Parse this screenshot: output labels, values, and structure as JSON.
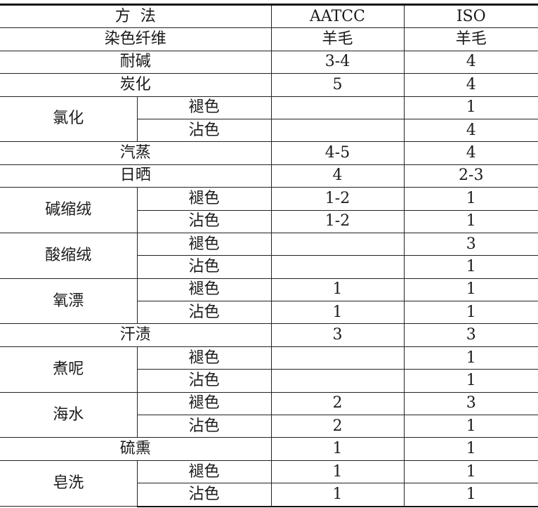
{
  "header": {
    "method": "方  法",
    "aatcc": "AATCC",
    "iso": "ISO"
  },
  "fiber": {
    "label": "染色纤维",
    "aatcc": "羊毛",
    "iso": "羊毛"
  },
  "rows": [
    {
      "name": "耐碱",
      "aatcc": "3-4",
      "iso": "4"
    },
    {
      "name": "炭化",
      "aatcc": "5",
      "iso": "4"
    },
    {
      "name": "氯化",
      "sub": [
        {
          "label": "褪色",
          "aatcc": "",
          "iso": "1"
        },
        {
          "label": "沾色",
          "aatcc": "",
          "iso": "4"
        }
      ]
    },
    {
      "name": "汽蒸",
      "aatcc": "4-5",
      "iso": "4"
    },
    {
      "name": "日晒",
      "aatcc": "4",
      "iso": "2-3"
    },
    {
      "name": "碱缩绒",
      "sub": [
        {
          "label": "褪色",
          "aatcc": "1-2",
          "iso": "1"
        },
        {
          "label": "沾色",
          "aatcc": "1-2",
          "iso": "1"
        }
      ]
    },
    {
      "name": "酸缩绒",
      "sub": [
        {
          "label": "褪色",
          "aatcc": "",
          "iso": "3"
        },
        {
          "label": "沾色",
          "aatcc": "",
          "iso": "1"
        }
      ]
    },
    {
      "name": "氧漂",
      "sub": [
        {
          "label": "褪色",
          "aatcc": "1",
          "iso": "1"
        },
        {
          "label": "沾色",
          "aatcc": "1",
          "iso": "1"
        }
      ]
    },
    {
      "name": "汗渍",
      "aatcc": "3",
      "iso": "3"
    },
    {
      "name": "煮呢",
      "sub": [
        {
          "label": "褪色",
          "aatcc": "",
          "iso": "1"
        },
        {
          "label": "沾色",
          "aatcc": "",
          "iso": "1"
        }
      ]
    },
    {
      "name": "海水",
      "sub": [
        {
          "label": "褪色",
          "aatcc": "2",
          "iso": "3"
        },
        {
          "label": "沾色",
          "aatcc": "2",
          "iso": "1"
        }
      ]
    },
    {
      "name": "硫熏",
      "aatcc": "1",
      "iso": "1"
    },
    {
      "name": "皂洗",
      "sub": [
        {
          "label": "褪色",
          "aatcc": "1",
          "iso": "1"
        },
        {
          "label": "沾色",
          "aatcc": "1",
          "iso": "1"
        }
      ]
    }
  ]
}
